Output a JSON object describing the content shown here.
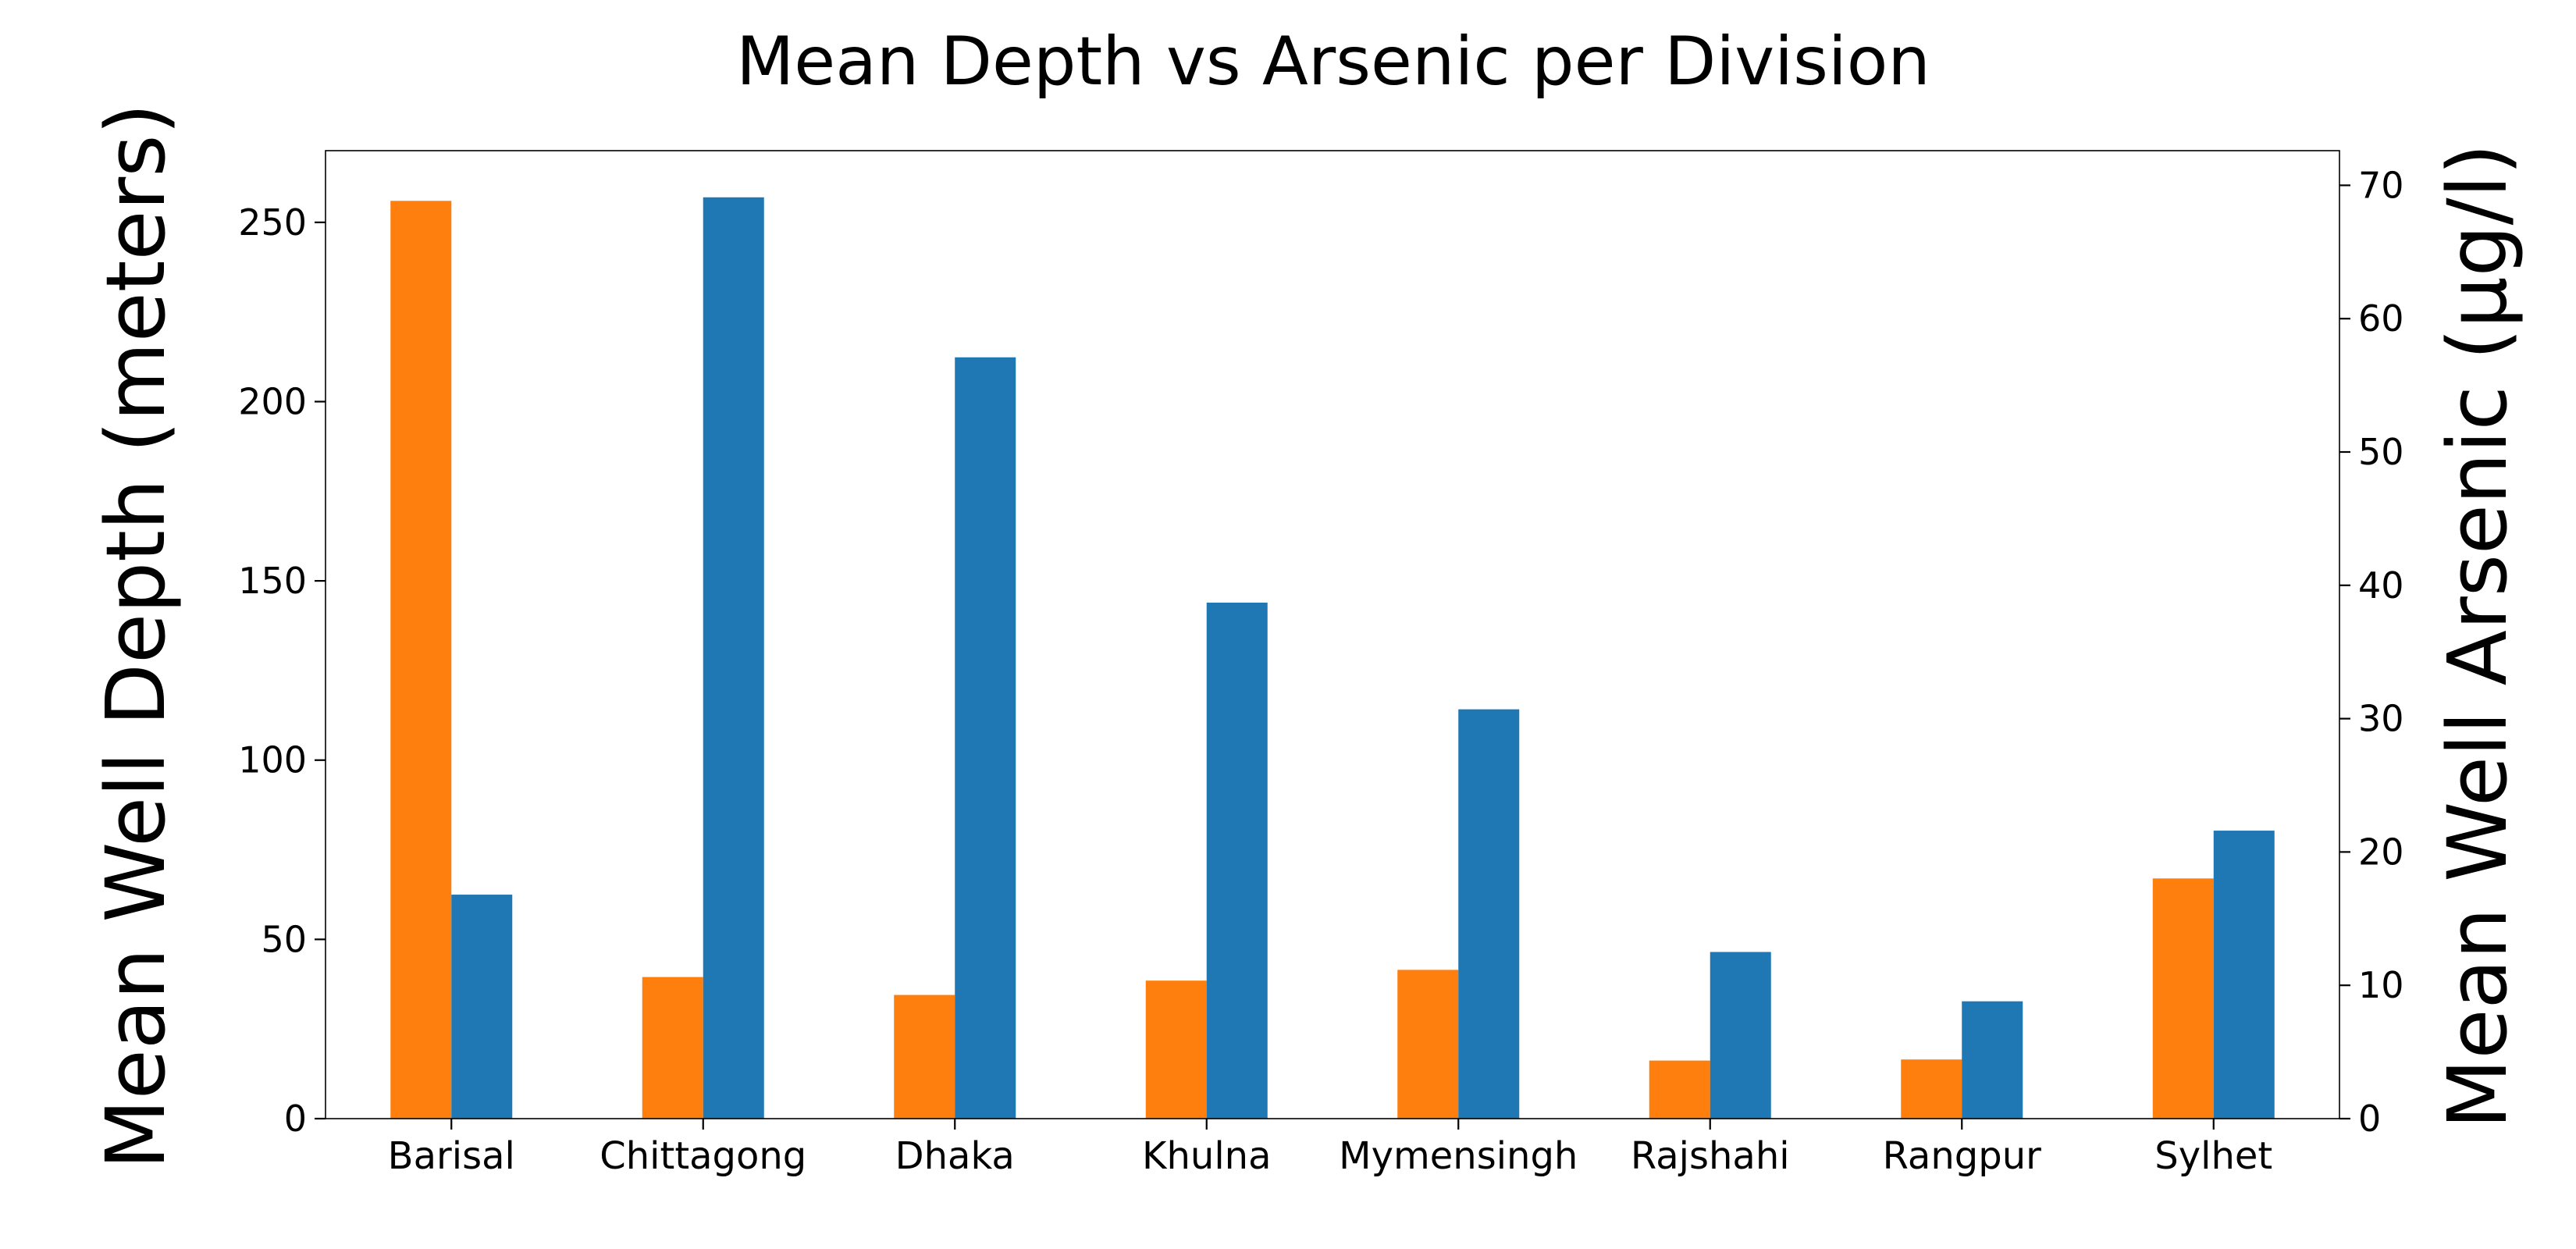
{
  "chart_data": {
    "type": "bar",
    "title": "Mean Depth vs Arsenic per Division",
    "categories": [
      "Barisal",
      "Chittagong",
      "Dhaka",
      "Khulna",
      "Mymensingh",
      "Rajshahi",
      "Rangpur",
      "Sylhet"
    ],
    "series": [
      {
        "axis": "left",
        "color": "#ff7f0e",
        "values": [
          256,
          39.5,
          34.5,
          38.5,
          41.5,
          16.2,
          16.5,
          67
        ]
      },
      {
        "axis": "right",
        "color": "#1f77b4",
        "values": [
          16.8,
          69.1,
          57.1,
          38.7,
          30.7,
          12.5,
          8.8,
          21.6
        ]
      }
    ],
    "left_axis": {
      "label": "Mean Well Depth (meters)",
      "ylim": [
        0,
        270
      ],
      "ticks": [
        0,
        50,
        100,
        150,
        200,
        250
      ]
    },
    "right_axis": {
      "label": "Mean Well Arsenic (µg/l)",
      "ylim": [
        0,
        72.6
      ],
      "ticks": [
        0,
        10,
        20,
        30,
        40,
        50,
        60,
        70
      ]
    },
    "grid": false,
    "legend": "none"
  }
}
